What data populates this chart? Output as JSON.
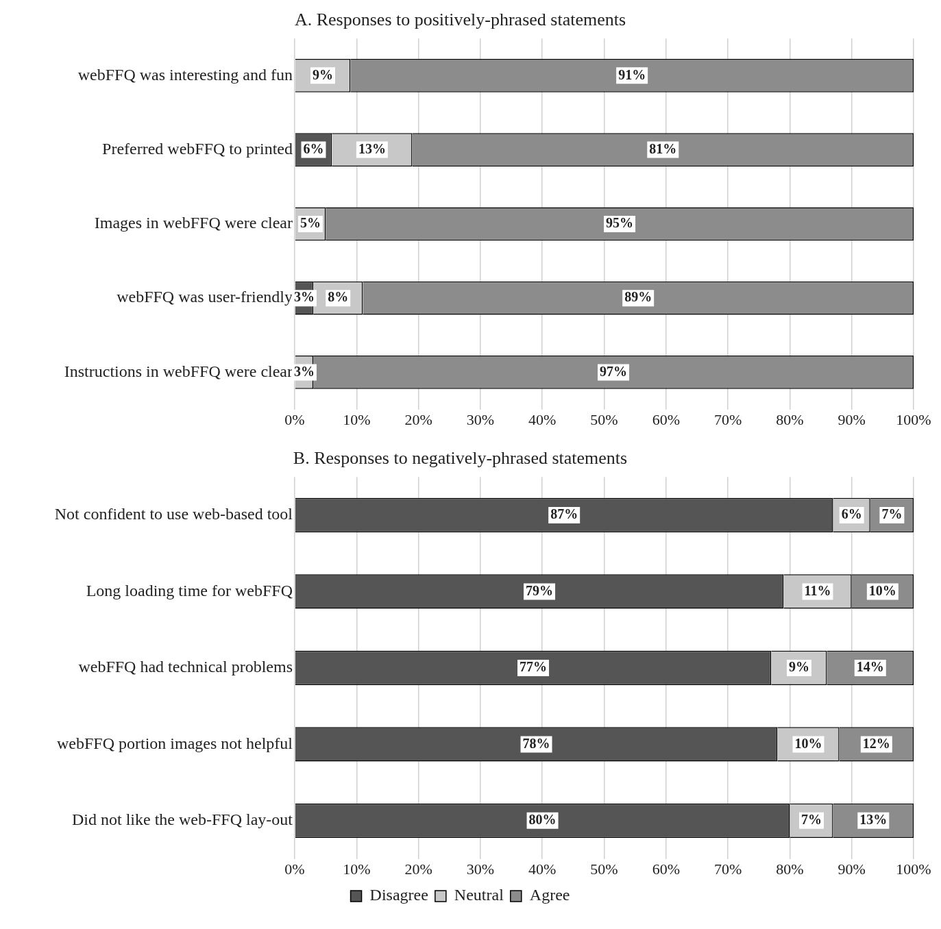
{
  "chart_data": [
    {
      "type": "bar",
      "orientation": "horizontal",
      "stacked": true,
      "title": "A. Responses to positively-phrased statements",
      "categories": [
        "webFFQ was interesting and fun",
        "Preferred webFFQ to printed",
        "Images in webFFQ were clear",
        "webFFQ was user-friendly",
        "Instructions in webFFQ were clear"
      ],
      "series": [
        {
          "color": "#555555",
          "values": [
            null,
            6,
            null,
            3,
            null
          ],
          "value_labels": [
            null,
            "6%",
            null,
            "3%",
            null
          ]
        },
        {
          "color": "#c8c8c8",
          "values": [
            9,
            13,
            5,
            8,
            3
          ],
          "value_labels": [
            "9%",
            "13%",
            "5%",
            "8%",
            "3%"
          ]
        },
        {
          "color": "#8c8c8c",
          "values": [
            91,
            81,
            95,
            89,
            97
          ],
          "value_labels": [
            "91%",
            "81%",
            "95%",
            "89%",
            "97%"
          ]
        }
      ],
      "xlim": [
        0,
        100
      ],
      "xticks": [
        {
          "value": 0,
          "label": "0%"
        },
        {
          "value": 10,
          "label": "10%"
        },
        {
          "value": 20,
          "label": "20%"
        },
        {
          "value": 30,
          "label": "30%"
        },
        {
          "value": 40,
          "label": "40%"
        },
        {
          "value": 50,
          "label": "50%"
        },
        {
          "value": 60,
          "label": "60%"
        },
        {
          "value": 70,
          "label": "70%"
        },
        {
          "value": 80,
          "label": "80%"
        },
        {
          "value": 90,
          "label": "90%"
        },
        {
          "value": 100,
          "label": "100%"
        }
      ],
      "grid": "x",
      "legend": false
    },
    {
      "type": "bar",
      "orientation": "horizontal",
      "stacked": true,
      "title": "B. Responses to negatively-phrased statements",
      "categories": [
        "Not confident to use web-based tool",
        "Long loading time for webFFQ",
        "webFFQ had technical problems",
        "webFFQ portion images not helpful",
        "Did not like the web-FFQ lay-out"
      ],
      "series": [
        {
          "name": "Disagree",
          "color": "#555555",
          "values": [
            87,
            79,
            77,
            78,
            80
          ],
          "value_labels": [
            "87%",
            "79%",
            "77%",
            "78%",
            "80%"
          ]
        },
        {
          "name": "Neutral",
          "color": "#c8c8c8",
          "values": [
            6,
            11,
            9,
            10,
            7
          ],
          "value_labels": [
            "6%",
            "11%",
            "9%",
            "10%",
            "7%"
          ]
        },
        {
          "name": "Agree",
          "color": "#8c8c8c",
          "values": [
            7,
            10,
            14,
            12,
            13
          ],
          "value_labels": [
            "7%",
            "10%",
            "14%",
            "12%",
            "13%"
          ]
        }
      ],
      "xlim": [
        0,
        100
      ],
      "xticks": [
        {
          "value": 0,
          "label": "0%"
        },
        {
          "value": 10,
          "label": "10%"
        },
        {
          "value": 20,
          "label": "20%"
        },
        {
          "value": 30,
          "label": "30%"
        },
        {
          "value": 40,
          "label": "40%"
        },
        {
          "value": 50,
          "label": "50%"
        },
        {
          "value": 60,
          "label": "60%"
        },
        {
          "value": 70,
          "label": "70%"
        },
        {
          "value": 80,
          "label": "80%"
        },
        {
          "value": 90,
          "label": "90%"
        },
        {
          "value": 100,
          "label": "100%"
        }
      ],
      "grid": "x",
      "legend": "bottom"
    }
  ]
}
